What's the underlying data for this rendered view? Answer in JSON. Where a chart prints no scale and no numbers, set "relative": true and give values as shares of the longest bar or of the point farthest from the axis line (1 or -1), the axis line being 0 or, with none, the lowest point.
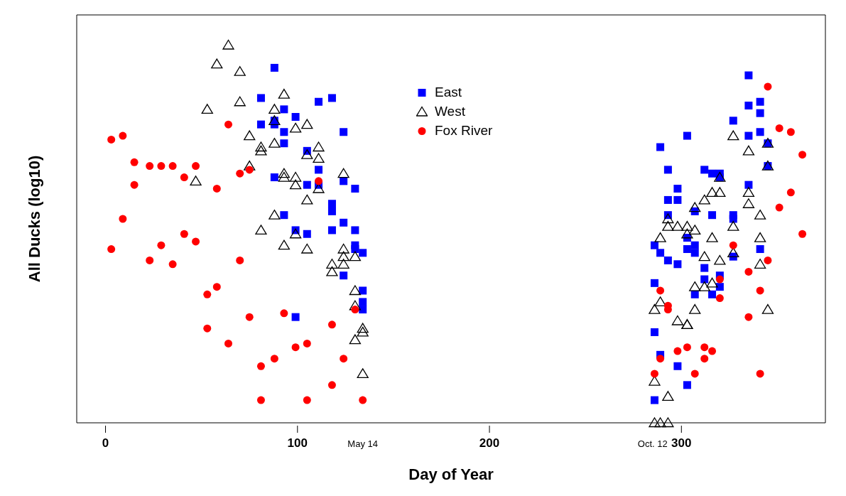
{
  "chart_data": {
    "type": "scatter",
    "relative": true,
    "xlabel": "Day of Year",
    "ylabel": "All Ducks (log10)",
    "xlim": [
      -15,
      375
    ],
    "xticks": [
      0,
      100,
      {
        "value": 134,
        "label": "May 14"
      },
      200,
      {
        "value": 285,
        "label": "Oct. 12"
      },
      300
    ],
    "legend": "top",
    "grid": false,
    "series": [
      {
        "name": "East",
        "color": "#0000ff",
        "marker": "square",
        "x": [
          88,
          81,
          93,
          99,
          111,
          118,
          81,
          88,
          88,
          93,
          124,
          93,
          105,
          111,
          88,
          105,
          111,
          124,
          130,
          118,
          118,
          93,
          99,
          105,
          118,
          124,
          130,
          130,
          130,
          134,
          124,
          134,
          134,
          134,
          99,
          335,
          341,
          335,
          341,
          327,
          303,
          341,
          335,
          345,
          289,
          293,
          345,
          312,
          316,
          320,
          320,
          298,
          293,
          298,
          335,
          293,
          307,
          316,
          327,
          327,
          303,
          286,
          289,
          293,
          303,
          307,
          307,
          298,
          341,
          327,
          312,
          312,
          320,
          320,
          316,
          307,
          286,
          286,
          289,
          298,
          303,
          286
        ],
        "values": [
          0.94,
          0.86,
          0.83,
          0.81,
          0.85,
          0.86,
          0.79,
          0.8,
          0.79,
          0.77,
          0.77,
          0.74,
          0.72,
          0.67,
          0.65,
          0.63,
          0.63,
          0.64,
          0.62,
          0.58,
          0.56,
          0.55,
          0.51,
          0.5,
          0.51,
          0.53,
          0.51,
          0.47,
          0.46,
          0.45,
          0.39,
          0.35,
          0.32,
          0.3,
          0.28,
          0.92,
          0.85,
          0.84,
          0.82,
          0.8,
          0.76,
          0.77,
          0.76,
          0.74,
          0.73,
          0.67,
          0.68,
          0.67,
          0.66,
          0.66,
          0.65,
          0.62,
          0.59,
          0.59,
          0.63,
          0.55,
          0.56,
          0.55,
          0.55,
          0.54,
          0.49,
          0.47,
          0.45,
          0.43,
          0.46,
          0.47,
          0.45,
          0.42,
          0.46,
          0.44,
          0.41,
          0.38,
          0.39,
          0.36,
          0.34,
          0.34,
          0.37,
          0.24,
          0.18,
          0.15,
          0.1,
          0.06
        ]
      },
      {
        "name": "West",
        "color": "#000000",
        "marker": "triangle",
        "x": [
          64,
          58,
          70,
          93,
          70,
          53,
          88,
          88,
          99,
          105,
          75,
          81,
          81,
          88,
          105,
          111,
          111,
          75,
          93,
          93,
          99,
          99,
          124,
          47,
          111,
          105,
          88,
          81,
          99,
          93,
          105,
          124,
          124,
          130,
          118,
          118,
          124,
          130,
          130,
          134,
          134,
          130,
          134,
          327,
          335,
          345,
          345,
          320,
          316,
          320,
          312,
          307,
          335,
          335,
          341,
          293,
          293,
          298,
          303,
          307,
          303,
          289,
          316,
          327,
          341,
          327,
          312,
          320,
          341,
          316,
          312,
          307,
          289,
          286,
          307,
          345,
          298,
          303,
          303,
          286,
          293,
          286,
          289,
          293
        ],
        "values": [
          1.0,
          0.95,
          0.93,
          0.87,
          0.85,
          0.83,
          0.83,
          0.8,
          0.78,
          0.79,
          0.76,
          0.73,
          0.72,
          0.74,
          0.71,
          0.73,
          0.7,
          0.68,
          0.66,
          0.65,
          0.65,
          0.63,
          0.66,
          0.64,
          0.62,
          0.59,
          0.55,
          0.51,
          0.5,
          0.47,
          0.46,
          0.46,
          0.44,
          0.44,
          0.42,
          0.4,
          0.42,
          0.35,
          0.31,
          0.25,
          0.24,
          0.22,
          0.13,
          0.76,
          0.72,
          0.74,
          0.68,
          0.65,
          0.61,
          0.61,
          0.59,
          0.57,
          0.61,
          0.58,
          0.55,
          0.54,
          0.52,
          0.52,
          0.52,
          0.51,
          0.5,
          0.49,
          0.49,
          0.52,
          0.49,
          0.45,
          0.44,
          0.43,
          0.42,
          0.37,
          0.36,
          0.36,
          0.32,
          0.3,
          0.3,
          0.3,
          0.27,
          0.26,
          0.26,
          0.11,
          0.07,
          0,
          0,
          0
        ]
      },
      {
        "name": "Fox River",
        "color": "#ff0000",
        "marker": "circle",
        "x": [
          3,
          9,
          15,
          23,
          29,
          35,
          41,
          47,
          15,
          58,
          64,
          70,
          75,
          111,
          9,
          3,
          23,
          29,
          35,
          41,
          47,
          70,
          53,
          58,
          53,
          64,
          75,
          93,
          99,
          105,
          118,
          130,
          88,
          81,
          124,
          118,
          81,
          105,
          134,
          345,
          351,
          357,
          363,
          357,
          351,
          363,
          327,
          345,
          335,
          320,
          341,
          289,
          320,
          335,
          293,
          293,
          303,
          312,
          316,
          298,
          312,
          289,
          307,
          286,
          341
        ],
        "values": [
          0.75,
          0.76,
          0.69,
          0.68,
          0.68,
          0.68,
          0.65,
          0.68,
          0.63,
          0.62,
          0.79,
          0.66,
          0.67,
          0.64,
          0.54,
          0.46,
          0.43,
          0.47,
          0.42,
          0.5,
          0.48,
          0.43,
          0.34,
          0.36,
          0.25,
          0.21,
          0.28,
          0.29,
          0.2,
          0.21,
          0.26,
          0.3,
          0.17,
          0.15,
          0.17,
          0.1,
          0.06,
          0.06,
          0.06,
          0.89,
          0.78,
          0.77,
          0.71,
          0.61,
          0.57,
          0.5,
          0.47,
          0.43,
          0.4,
          0.38,
          0.35,
          0.35,
          0.33,
          0.28,
          0.31,
          0.3,
          0.2,
          0.2,
          0.19,
          0.19,
          0.17,
          0.17,
          0.13,
          0.13,
          0.13
        ]
      }
    ]
  }
}
